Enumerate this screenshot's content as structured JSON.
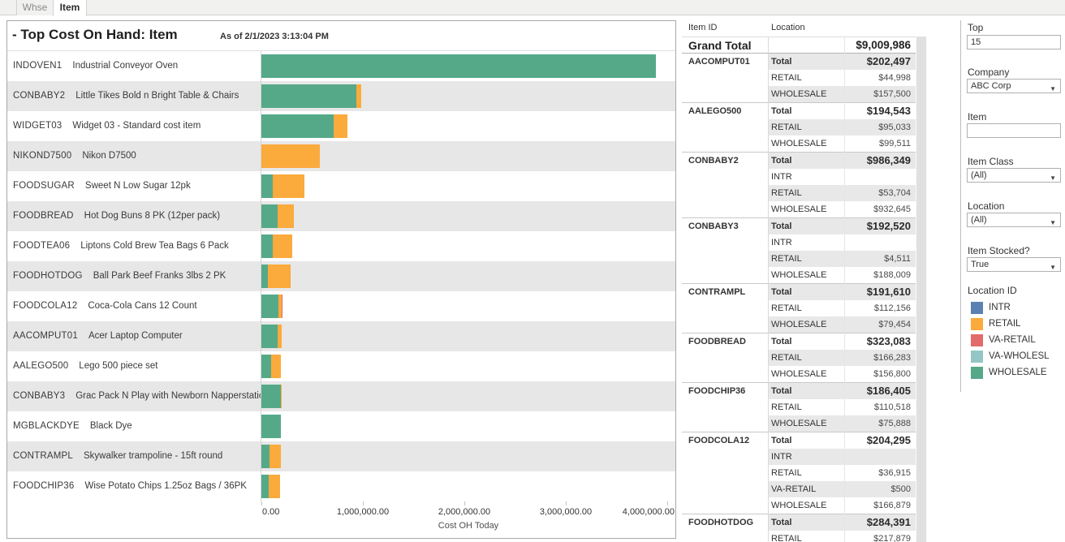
{
  "tabs": [
    {
      "label": "Whse",
      "active": false
    },
    {
      "label": "Item",
      "active": true
    }
  ],
  "chart": {
    "title": "- Top Cost On Hand: Item",
    "as_of": "As of 2/1/2023 3:13:04 PM"
  },
  "chart_data": {
    "type": "bar",
    "orientation": "horizontal",
    "stacked": true,
    "title": "- Top Cost On Hand: Item",
    "xlabel": "Cost OH Today",
    "xlim": [
      0,
      4080000
    ],
    "x_tick_values": [
      0,
      1000000,
      2000000,
      3000000,
      4000000
    ],
    "x_tick_labels": [
      "0.00",
      "1,000,000.00",
      "2,000,000.00",
      "3,000,000.00",
      "4,000,000.00"
    ],
    "grid": false,
    "legend_position": "right",
    "categories": [
      "INDOVEN1",
      "CONBABY2",
      "WIDGET03",
      "NIKOND7500",
      "FOODSUGAR",
      "FOODBREAD",
      "FOODTEA06",
      "FOODHOTDOG",
      "FOODCOLA12",
      "AACOMPUT01",
      "AALEGO500",
      "CONBABY3",
      "MGBLACKDYE",
      "CONTRAMPL",
      "FOODCHIP36"
    ],
    "descriptions": [
      "Industrial Conveyor Oven",
      "Little Tikes Bold n Bright Table & Chairs",
      "Widget 03 - Standard cost item",
      "Nikon D7500",
      "Sweet N Low Sugar 12pk",
      "Hot Dog Buns 8 PK (12per pack)",
      "Liptons Cold Brew Tea Bags 6 Pack",
      "Ball Park Beef Franks 3lbs 2 PK",
      "Coca-Cola Cans 12 Count",
      "Acer Laptop Computer",
      "Lego 500 piece set",
      "Grac Pack N Play with Newborn Napperstation",
      "Black Dye",
      "Skywalker trampoline - 15ft round",
      "Wise Potato Chips 1.25oz Bags / 36PK"
    ],
    "series": [
      {
        "name": "WHOLESALE",
        "color": "#55a989",
        "values": [
          3890000,
          932645,
          710000,
          0,
          110000,
          156800,
          115000,
          66512,
          166879,
          157500,
          99511,
          188009,
          190000,
          79454,
          75888
        ]
      },
      {
        "name": "RETAIL",
        "color": "#fbaa3c",
        "values": [
          0,
          53704,
          135000,
          575000,
          310000,
          166283,
          190000,
          217879,
          36915,
          44998,
          95033,
          4511,
          0,
          112156,
          110518
        ]
      },
      {
        "name": "VA-RETAIL",
        "color": "#e26a6a",
        "values": [
          0,
          0,
          0,
          0,
          0,
          0,
          0,
          0,
          500,
          0,
          0,
          0,
          0,
          0,
          0
        ]
      }
    ]
  },
  "table": {
    "headers": {
      "item_id": "Item ID",
      "location": "Location"
    },
    "grand_total": {
      "label": "Grand Total",
      "value": "$9,009,986"
    },
    "groups": [
      {
        "item_id": "AACOMPUT01",
        "rows": [
          [
            "Total",
            "$202,497"
          ],
          [
            "RETAIL",
            "$44,998"
          ],
          [
            "WHOLESALE",
            "$157,500"
          ]
        ]
      },
      {
        "item_id": "AALEGO500",
        "rows": [
          [
            "Total",
            "$194,543"
          ],
          [
            "RETAIL",
            "$95,033"
          ],
          [
            "WHOLESALE",
            "$99,511"
          ]
        ]
      },
      {
        "item_id": "CONBABY2",
        "rows": [
          [
            "Total",
            "$986,349"
          ],
          [
            "INTR",
            ""
          ],
          [
            "RETAIL",
            "$53,704"
          ],
          [
            "WHOLESALE",
            "$932,645"
          ]
        ]
      },
      {
        "item_id": "CONBABY3",
        "rows": [
          [
            "Total",
            "$192,520"
          ],
          [
            "INTR",
            ""
          ],
          [
            "RETAIL",
            "$4,511"
          ],
          [
            "WHOLESALE",
            "$188,009"
          ]
        ]
      },
      {
        "item_id": "CONTRAMPL",
        "rows": [
          [
            "Total",
            "$191,610"
          ],
          [
            "RETAIL",
            "$112,156"
          ],
          [
            "WHOLESALE",
            "$79,454"
          ]
        ]
      },
      {
        "item_id": "FOODBREAD",
        "rows": [
          [
            "Total",
            "$323,083"
          ],
          [
            "RETAIL",
            "$166,283"
          ],
          [
            "WHOLESALE",
            "$156,800"
          ]
        ]
      },
      {
        "item_id": "FOODCHIP36",
        "rows": [
          [
            "Total",
            "$186,405"
          ],
          [
            "RETAIL",
            "$110,518"
          ],
          [
            "WHOLESALE",
            "$75,888"
          ]
        ]
      },
      {
        "item_id": "FOODCOLA12",
        "rows": [
          [
            "Total",
            "$204,295"
          ],
          [
            "INTR",
            ""
          ],
          [
            "RETAIL",
            "$36,915"
          ],
          [
            "VA-RETAIL",
            "$500"
          ],
          [
            "WHOLESALE",
            "$166,879"
          ]
        ]
      },
      {
        "item_id": "FOODHOTDOG",
        "rows": [
          [
            "Total",
            "$284,391"
          ],
          [
            "RETAIL",
            "$217,879"
          ]
        ]
      }
    ]
  },
  "filters": {
    "top": {
      "label": "Top",
      "value": "15"
    },
    "company": {
      "label": "Company",
      "value": "ABC Corp"
    },
    "item": {
      "label": "Item",
      "value": ""
    },
    "item_class": {
      "label": "Item Class",
      "value": "(All)"
    },
    "location": {
      "label": "Location",
      "value": "(All)"
    },
    "item_stocked": {
      "label": "Item Stocked?",
      "value": "True"
    }
  },
  "legend": {
    "title": "Location ID",
    "items": [
      {
        "label": "INTR",
        "color": "#5b80b2"
      },
      {
        "label": "RETAIL",
        "color": "#fbaa3c"
      },
      {
        "label": "VA-RETAIL",
        "color": "#e26a6a"
      },
      {
        "label": "VA-WHOLESL",
        "color": "#94c6c6"
      },
      {
        "label": "WHOLESALE",
        "color": "#55a989"
      }
    ]
  }
}
